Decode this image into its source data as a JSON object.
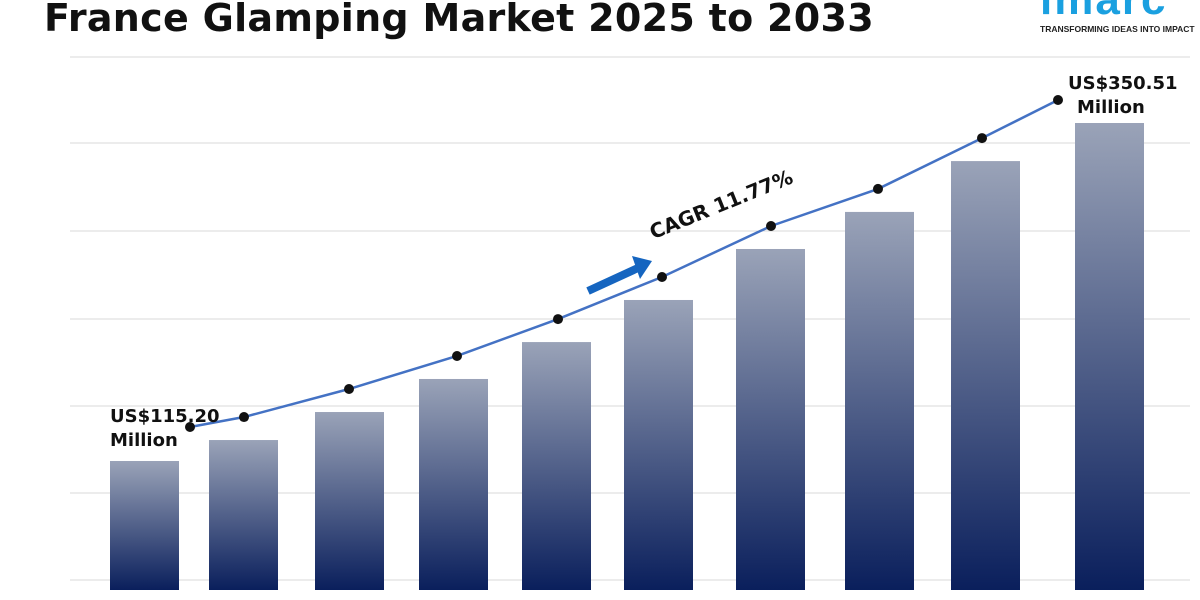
{
  "title": "France Glamping Market 2025 to 2033",
  "logo": {
    "word": "imarc",
    "tagline": "TRANSFORMING IDEAS INTO IMPACT"
  },
  "colors": {
    "bar_top": "#9aa3b8",
    "bar_bottom": "#0a1f5c",
    "line": "#4472c4",
    "marker": "#111111",
    "arrow": "#1565c0",
    "logo": "#1aa0e0"
  },
  "chart_data": {
    "type": "bar",
    "title": "France Glamping Market 2025 to 2033",
    "values": [
      115.2,
      129.8,
      149.3,
      172.3,
      198.0,
      227.3,
      262.8,
      288.6,
      324.0,
      350.51
    ],
    "trend_line": true,
    "grid": true,
    "annotations": {
      "start_value": "US$115.20",
      "start_unit": "Million",
      "end_value": "US$350.51",
      "end_unit": "Million",
      "cagr": "CAGR 11.77%"
    }
  }
}
